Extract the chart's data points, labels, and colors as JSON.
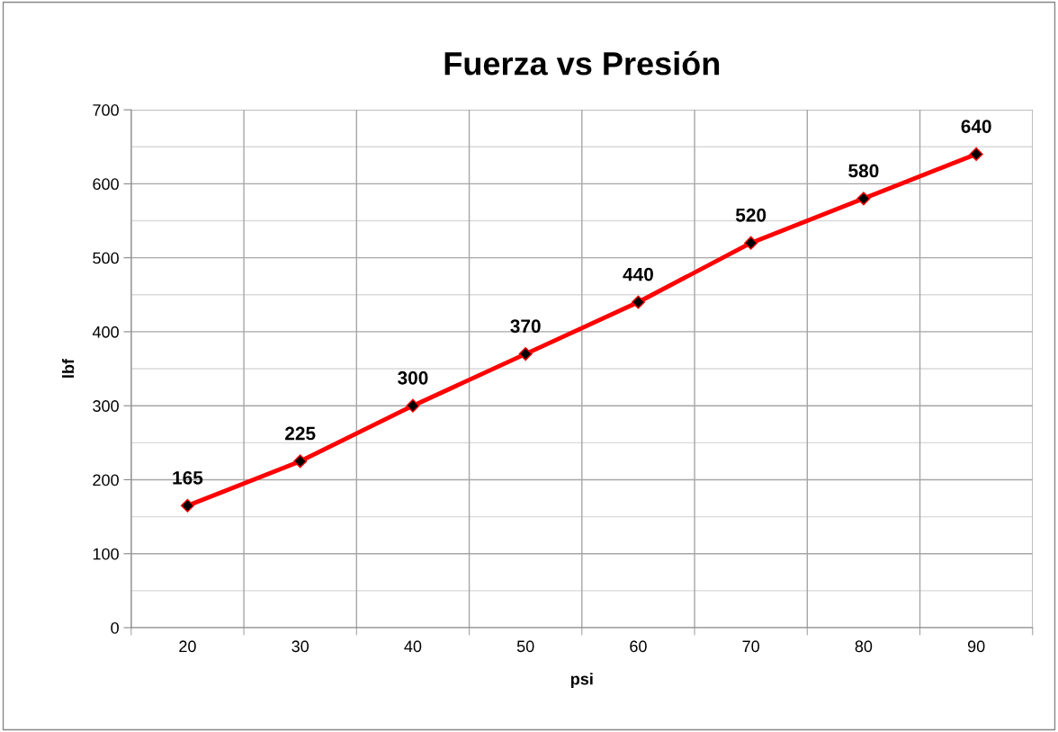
{
  "chart_data": {
    "type": "line",
    "title": "Fuerza vs Presión",
    "xlabel": "psi",
    "ylabel": "lbf",
    "categories": [
      "20",
      "30",
      "40",
      "50",
      "60",
      "70",
      "80",
      "90"
    ],
    "series": [
      {
        "color": "#ff0000",
        "values": [
          165,
          225,
          300,
          370,
          440,
          520,
          580,
          640
        ]
      }
    ],
    "ylim": [
      0,
      700
    ],
    "yticks": [
      0,
      100,
      200,
      300,
      400,
      500,
      600,
      700
    ],
    "grid": true,
    "legend": false,
    "marker": "diamond",
    "line_style": "solid",
    "data_labels": true
  }
}
